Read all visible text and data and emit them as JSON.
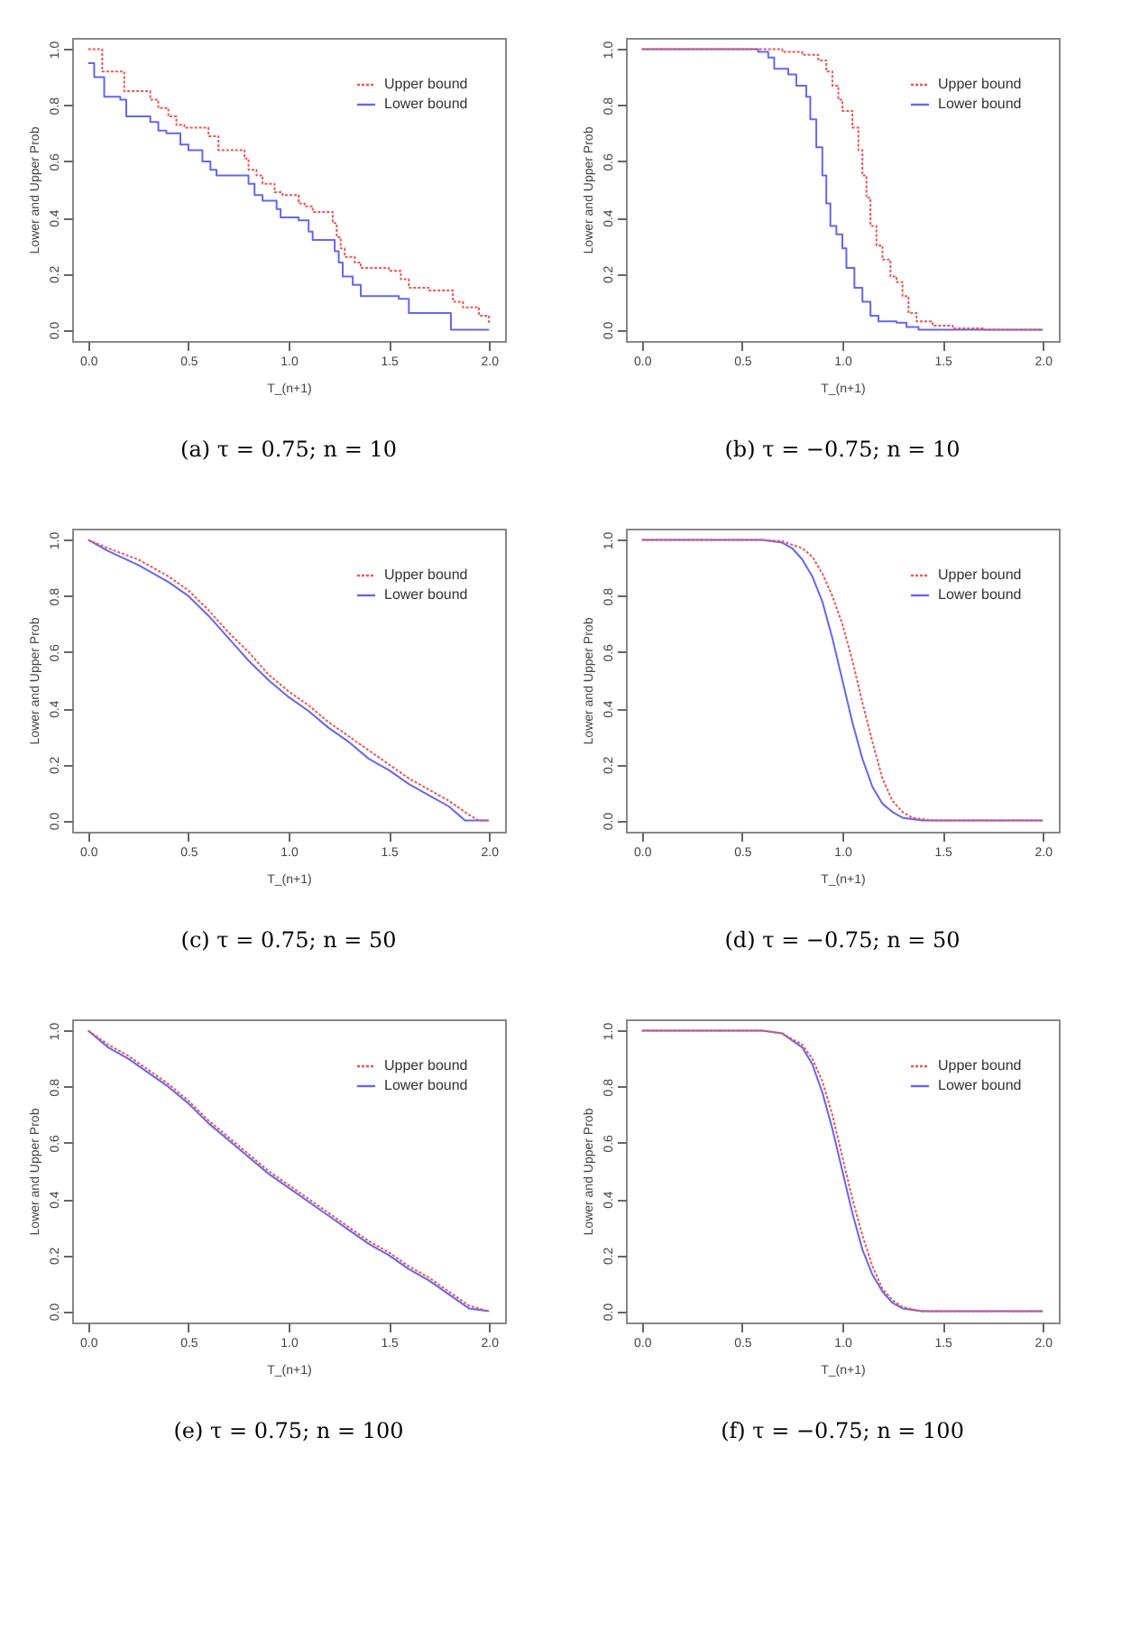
{
  "chart_data": [
    {
      "type": "step",
      "title": "(a) τ = 0.75; n = 10",
      "xlabel": "T_(n+1)",
      "ylabel": "Lower and Upper Prob",
      "xlim": [
        -0.08,
        2.08
      ],
      "ylim": [
        -0.04,
        1.04
      ],
      "xticks": [
        {
          "value": 0,
          "label": "0.0"
        },
        {
          "value": 0.5,
          "label": "0.5"
        },
        {
          "value": 1,
          "label": "1.0"
        },
        {
          "value": 1.5,
          "label": "1.5"
        },
        {
          "value": 2,
          "label": "2.0"
        }
      ],
      "yticks": [
        {
          "value": 0,
          "label": "0.0"
        },
        {
          "value": 0.2,
          "label": "0.2"
        },
        {
          "value": 0.4,
          "label": "0.4"
        },
        {
          "value": 0.6,
          "label": "0.6"
        },
        {
          "value": 0.8,
          "label": "0.8"
        },
        {
          "value": 1,
          "label": "1.0"
        }
      ],
      "grid": false,
      "legend": "top right",
      "series": [
        {
          "name": "Upper bound",
          "color": "#ee5555",
          "line_style": "dotted",
          "x": [
            0,
            0.07,
            0.18,
            0.31,
            0.35,
            0.4,
            0.44,
            0.48,
            0.6,
            0.65,
            0.78,
            0.8,
            0.84,
            0.87,
            0.93,
            0.97,
            1.05,
            1.08,
            1.12,
            1.22,
            1.24,
            1.26,
            1.28,
            1.33,
            1.36,
            1.5,
            1.56,
            1.6,
            1.7,
            1.82,
            1.87,
            1.95,
            2.0
          ],
          "values": [
            1.0,
            0.92,
            0.85,
            0.82,
            0.79,
            0.76,
            0.73,
            0.72,
            0.69,
            0.64,
            0.61,
            0.57,
            0.55,
            0.52,
            0.49,
            0.48,
            0.45,
            0.44,
            0.42,
            0.38,
            0.33,
            0.29,
            0.26,
            0.24,
            0.22,
            0.21,
            0.18,
            0.15,
            0.14,
            0.1,
            0.08,
            0.05,
            0.02
          ]
        },
        {
          "name": "Lower bound",
          "color": "#6666ee",
          "line_style": "solid",
          "x": [
            0,
            0.03,
            0.08,
            0.16,
            0.19,
            0.31,
            0.35,
            0.39,
            0.46,
            0.5,
            0.57,
            0.61,
            0.64,
            0.8,
            0.83,
            0.87,
            0.94,
            0.96,
            1.05,
            1.1,
            1.12,
            1.23,
            1.25,
            1.27,
            1.32,
            1.36,
            1.55,
            1.6,
            1.81,
            2.0
          ],
          "values": [
            0.95,
            0.9,
            0.83,
            0.82,
            0.76,
            0.74,
            0.71,
            0.7,
            0.66,
            0.64,
            0.6,
            0.57,
            0.55,
            0.52,
            0.48,
            0.46,
            0.43,
            0.4,
            0.39,
            0.35,
            0.32,
            0.28,
            0.24,
            0.19,
            0.16,
            0.12,
            0.11,
            0.06,
            0.0,
            0.0
          ]
        }
      ]
    },
    {
      "type": "step",
      "title": "(b) τ = −0.75; n = 10",
      "xlabel": "T_(n+1)",
      "ylabel": "Lower and Upper Prob",
      "xlim": [
        -0.08,
        2.08
      ],
      "ylim": [
        -0.04,
        1.04
      ],
      "xticks": [
        {
          "value": 0,
          "label": "0.0"
        },
        {
          "value": 0.5,
          "label": "0.5"
        },
        {
          "value": 1,
          "label": "1.0"
        },
        {
          "value": 1.5,
          "label": "1.5"
        },
        {
          "value": 2,
          "label": "2.0"
        }
      ],
      "yticks": [
        {
          "value": 0,
          "label": "0.0"
        },
        {
          "value": 0.2,
          "label": "0.2"
        },
        {
          "value": 0.4,
          "label": "0.4"
        },
        {
          "value": 0.6,
          "label": "0.6"
        },
        {
          "value": 0.8,
          "label": "0.8"
        },
        {
          "value": 1,
          "label": "1.0"
        }
      ],
      "grid": false,
      "legend": "top right",
      "series": [
        {
          "name": "Upper bound",
          "color": "#ee5555",
          "line_style": "dotted",
          "x": [
            0,
            0.6,
            0.7,
            0.8,
            0.88,
            0.92,
            0.95,
            0.98,
            1.0,
            1.05,
            1.08,
            1.1,
            1.12,
            1.14,
            1.17,
            1.2,
            1.24,
            1.27,
            1.3,
            1.33,
            1.37,
            1.45,
            1.55,
            1.7,
            2.0
          ],
          "values": [
            1.0,
            1.0,
            0.99,
            0.98,
            0.96,
            0.92,
            0.87,
            0.82,
            0.78,
            0.72,
            0.64,
            0.55,
            0.47,
            0.37,
            0.3,
            0.25,
            0.19,
            0.17,
            0.12,
            0.06,
            0.03,
            0.015,
            0.005,
            0.0,
            0.0
          ]
        },
        {
          "name": "Lower bound",
          "color": "#6666ee",
          "line_style": "solid",
          "x": [
            0,
            0.5,
            0.58,
            0.63,
            0.66,
            0.73,
            0.77,
            0.82,
            0.84,
            0.87,
            0.9,
            0.92,
            0.94,
            0.97,
            1.0,
            1.02,
            1.06,
            1.1,
            1.14,
            1.18,
            1.27,
            1.32,
            1.38,
            2.0
          ],
          "values": [
            1.0,
            1.0,
            0.99,
            0.97,
            0.93,
            0.91,
            0.87,
            0.83,
            0.75,
            0.65,
            0.55,
            0.45,
            0.37,
            0.34,
            0.29,
            0.22,
            0.15,
            0.1,
            0.05,
            0.03,
            0.025,
            0.01,
            0.0,
            0.0
          ]
        }
      ]
    },
    {
      "type": "line",
      "title": "(c) τ = 0.75; n = 50",
      "xlabel": "T_(n+1)",
      "ylabel": "Lower and Upper Prob",
      "xlim": [
        -0.08,
        2.08
      ],
      "ylim": [
        -0.04,
        1.04
      ],
      "xticks": [
        {
          "value": 0,
          "label": "0.0"
        },
        {
          "value": 0.5,
          "label": "0.5"
        },
        {
          "value": 1,
          "label": "1.0"
        },
        {
          "value": 1.5,
          "label": "1.5"
        },
        {
          "value": 2,
          "label": "2.0"
        }
      ],
      "yticks": [
        {
          "value": 0,
          "label": "0.0"
        },
        {
          "value": 0.2,
          "label": "0.2"
        },
        {
          "value": 0.4,
          "label": "0.4"
        },
        {
          "value": 0.6,
          "label": "0.6"
        },
        {
          "value": 0.8,
          "label": "0.8"
        },
        {
          "value": 1,
          "label": "1.0"
        }
      ],
      "grid": false,
      "legend": "top right",
      "series": [
        {
          "name": "Upper bound",
          "color": "#ee5555",
          "line_style": "dotted",
          "x": [
            0,
            0.1,
            0.25,
            0.4,
            0.5,
            0.6,
            0.7,
            0.8,
            0.9,
            1.0,
            1.1,
            1.2,
            1.3,
            1.4,
            1.5,
            1.6,
            1.7,
            1.8,
            1.9,
            1.95,
            2.0
          ],
          "values": [
            1.0,
            0.97,
            0.93,
            0.87,
            0.82,
            0.75,
            0.67,
            0.6,
            0.52,
            0.46,
            0.41,
            0.35,
            0.3,
            0.25,
            0.2,
            0.15,
            0.11,
            0.07,
            0.02,
            0.0,
            0.0
          ]
        },
        {
          "name": "Lower bound",
          "color": "#6666ee",
          "line_style": "solid",
          "x": [
            0,
            0.1,
            0.25,
            0.4,
            0.5,
            0.6,
            0.7,
            0.8,
            0.9,
            1.0,
            1.1,
            1.2,
            1.3,
            1.4,
            1.5,
            1.6,
            1.7,
            1.8,
            1.88,
            2.0
          ],
          "values": [
            1.0,
            0.96,
            0.91,
            0.85,
            0.8,
            0.73,
            0.65,
            0.57,
            0.5,
            0.44,
            0.39,
            0.33,
            0.28,
            0.22,
            0.18,
            0.13,
            0.09,
            0.05,
            0.0,
            0.0
          ]
        }
      ]
    },
    {
      "type": "line",
      "title": "(d) τ = −0.75; n = 50",
      "xlabel": "T_(n+1)",
      "ylabel": "Lower and Upper Prob",
      "xlim": [
        -0.08,
        2.08
      ],
      "ylim": [
        -0.04,
        1.04
      ],
      "xticks": [
        {
          "value": 0,
          "label": "0.0"
        },
        {
          "value": 0.5,
          "label": "0.5"
        },
        {
          "value": 1,
          "label": "1.0"
        },
        {
          "value": 1.5,
          "label": "1.5"
        },
        {
          "value": 2,
          "label": "2.0"
        }
      ],
      "yticks": [
        {
          "value": 0,
          "label": "0.0"
        },
        {
          "value": 0.2,
          "label": "0.2"
        },
        {
          "value": 0.4,
          "label": "0.4"
        },
        {
          "value": 0.6,
          "label": "0.6"
        },
        {
          "value": 0.8,
          "label": "0.8"
        },
        {
          "value": 1,
          "label": "1.0"
        }
      ],
      "grid": false,
      "legend": "top right",
      "series": [
        {
          "name": "Upper bound",
          "color": "#ee5555",
          "line_style": "dotted",
          "x": [
            0,
            0.6,
            0.7,
            0.8,
            0.85,
            0.9,
            0.95,
            1.0,
            1.05,
            1.1,
            1.15,
            1.2,
            1.25,
            1.3,
            1.35,
            1.45,
            2.0
          ],
          "values": [
            1.0,
            1.0,
            0.995,
            0.97,
            0.94,
            0.88,
            0.8,
            0.7,
            0.57,
            0.42,
            0.28,
            0.15,
            0.07,
            0.03,
            0.01,
            0.0,
            0.0
          ]
        },
        {
          "name": "Lower bound",
          "color": "#6666ee",
          "line_style": "solid",
          "x": [
            0,
            0.6,
            0.7,
            0.75,
            0.8,
            0.85,
            0.9,
            0.95,
            1.0,
            1.05,
            1.1,
            1.15,
            1.2,
            1.25,
            1.3,
            1.4,
            2.0
          ],
          "values": [
            1.0,
            1.0,
            0.99,
            0.97,
            0.93,
            0.87,
            0.78,
            0.65,
            0.5,
            0.35,
            0.22,
            0.12,
            0.06,
            0.03,
            0.01,
            0.0,
            0.0
          ]
        }
      ]
    },
    {
      "type": "line",
      "title": "(e) τ = 0.75; n = 100",
      "xlabel": "T_(n+1)",
      "ylabel": "Lower and Upper Prob",
      "xlim": [
        -0.08,
        2.08
      ],
      "ylim": [
        -0.04,
        1.04
      ],
      "xticks": [
        {
          "value": 0,
          "label": "0.0"
        },
        {
          "value": 0.5,
          "label": "0.5"
        },
        {
          "value": 1,
          "label": "1.0"
        },
        {
          "value": 1.5,
          "label": "1.5"
        },
        {
          "value": 2,
          "label": "2.0"
        }
      ],
      "yticks": [
        {
          "value": 0,
          "label": "0.0"
        },
        {
          "value": 0.2,
          "label": "0.2"
        },
        {
          "value": 0.4,
          "label": "0.4"
        },
        {
          "value": 0.6,
          "label": "0.6"
        },
        {
          "value": 0.8,
          "label": "0.8"
        },
        {
          "value": 1,
          "label": "1.0"
        }
      ],
      "grid": false,
      "legend": "top right",
      "series": [
        {
          "name": "Upper bound",
          "color": "#ee5555",
          "line_style": "dotted",
          "x": [
            0,
            0.1,
            0.2,
            0.3,
            0.4,
            0.5,
            0.6,
            0.7,
            0.8,
            0.9,
            1.0,
            1.1,
            1.2,
            1.3,
            1.4,
            1.5,
            1.6,
            1.7,
            1.8,
            1.9,
            2.0
          ],
          "values": [
            1.0,
            0.95,
            0.91,
            0.86,
            0.81,
            0.75,
            0.68,
            0.62,
            0.56,
            0.5,
            0.45,
            0.4,
            0.35,
            0.3,
            0.25,
            0.21,
            0.16,
            0.12,
            0.07,
            0.02,
            0.0
          ]
        },
        {
          "name": "Lower bound",
          "color": "#6666ee",
          "line_style": "solid",
          "x": [
            0,
            0.1,
            0.2,
            0.3,
            0.4,
            0.5,
            0.6,
            0.7,
            0.8,
            0.9,
            1.0,
            1.1,
            1.2,
            1.3,
            1.4,
            1.5,
            1.6,
            1.7,
            1.8,
            1.9,
            2.0
          ],
          "values": [
            1.0,
            0.94,
            0.9,
            0.85,
            0.8,
            0.74,
            0.67,
            0.61,
            0.55,
            0.49,
            0.44,
            0.39,
            0.34,
            0.29,
            0.24,
            0.2,
            0.15,
            0.11,
            0.06,
            0.01,
            0.0
          ]
        }
      ]
    },
    {
      "type": "line",
      "title": "(f) τ = −0.75; n = 100",
      "xlabel": "T_(n+1)",
      "ylabel": "Lower and Upper Prob",
      "xlim": [
        -0.08,
        2.08
      ],
      "ylim": [
        -0.04,
        1.04
      ],
      "xticks": [
        {
          "value": 0,
          "label": "0.0"
        },
        {
          "value": 0.5,
          "label": "0.5"
        },
        {
          "value": 1,
          "label": "1.0"
        },
        {
          "value": 1.5,
          "label": "1.5"
        },
        {
          "value": 2,
          "label": "2.0"
        }
      ],
      "yticks": [
        {
          "value": 0,
          "label": "0.0"
        },
        {
          "value": 0.2,
          "label": "0.2"
        },
        {
          "value": 0.4,
          "label": "0.4"
        },
        {
          "value": 0.6,
          "label": "0.6"
        },
        {
          "value": 0.8,
          "label": "0.8"
        },
        {
          "value": 1,
          "label": "1.0"
        }
      ],
      "grid": false,
      "legend": "top right",
      "series": [
        {
          "name": "Upper bound",
          "color": "#ee5555",
          "line_style": "dotted",
          "x": [
            0,
            0.6,
            0.7,
            0.8,
            0.85,
            0.9,
            0.95,
            1.0,
            1.05,
            1.1,
            1.15,
            1.2,
            1.25,
            1.3,
            1.4,
            2.0
          ],
          "values": [
            1.0,
            1.0,
            0.99,
            0.95,
            0.9,
            0.82,
            0.7,
            0.55,
            0.4,
            0.27,
            0.16,
            0.08,
            0.04,
            0.015,
            0.0,
            0.0
          ]
        },
        {
          "name": "Lower bound",
          "color": "#6666ee",
          "line_style": "solid",
          "x": [
            0,
            0.6,
            0.7,
            0.8,
            0.85,
            0.9,
            0.95,
            1.0,
            1.05,
            1.1,
            1.15,
            1.2,
            1.25,
            1.3,
            1.4,
            2.0
          ],
          "values": [
            1.0,
            1.0,
            0.99,
            0.94,
            0.88,
            0.78,
            0.65,
            0.5,
            0.35,
            0.22,
            0.13,
            0.07,
            0.03,
            0.01,
            0.0,
            0.0
          ]
        }
      ]
    }
  ]
}
